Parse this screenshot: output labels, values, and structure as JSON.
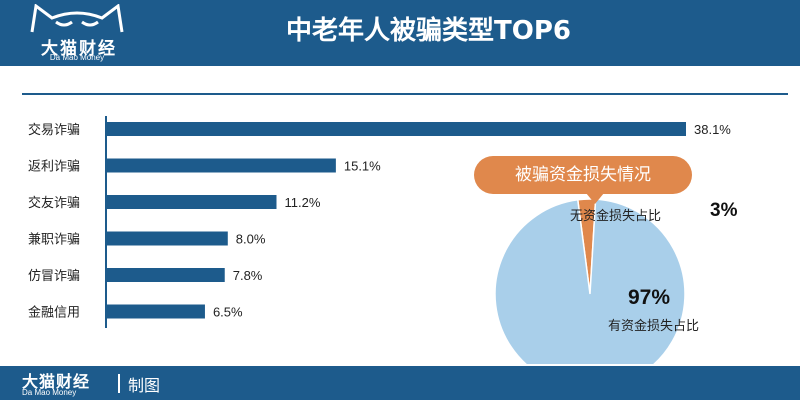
{
  "brand": {
    "name_cn": "大猫财经",
    "name_en": "Da Mao Money",
    "logo_icon": "cat-face-icon"
  },
  "header": {
    "title": "中老年人被骗类型TOP6"
  },
  "footer": {
    "brand_cn": "大猫财经",
    "brand_en": "Da Mao Money",
    "tag": "制图"
  },
  "colors": {
    "brand_blue": "#1d5b8c",
    "accent_orange": "#e0884c",
    "pie_blue": "#a9cfea"
  },
  "chart_data": [
    {
      "type": "bar",
      "orientation": "horizontal",
      "categories": [
        "交易诈骗",
        "返利诈骗",
        "交友诈骗",
        "兼职诈骗",
        "仿冒诈骗",
        "金融信用"
      ],
      "values": [
        38.1,
        15.1,
        11.2,
        8.0,
        7.8,
        6.5
      ],
      "value_labels": [
        "38.1%",
        "15.1%",
        "11.2%",
        "8.0%",
        "7.8%",
        "6.5%"
      ],
      "unit": "%",
      "title": "中老年人被骗类型TOP6",
      "xlim": [
        0,
        40
      ],
      "grid": false,
      "legend": "none"
    },
    {
      "type": "pie",
      "title": "被骗资金损失情况",
      "slices": [
        {
          "label": "无资金损失占比",
          "value": 3,
          "value_label": "3%"
        },
        {
          "label": "有资金损失占比",
          "value": 97,
          "value_label": "97%"
        }
      ]
    }
  ]
}
